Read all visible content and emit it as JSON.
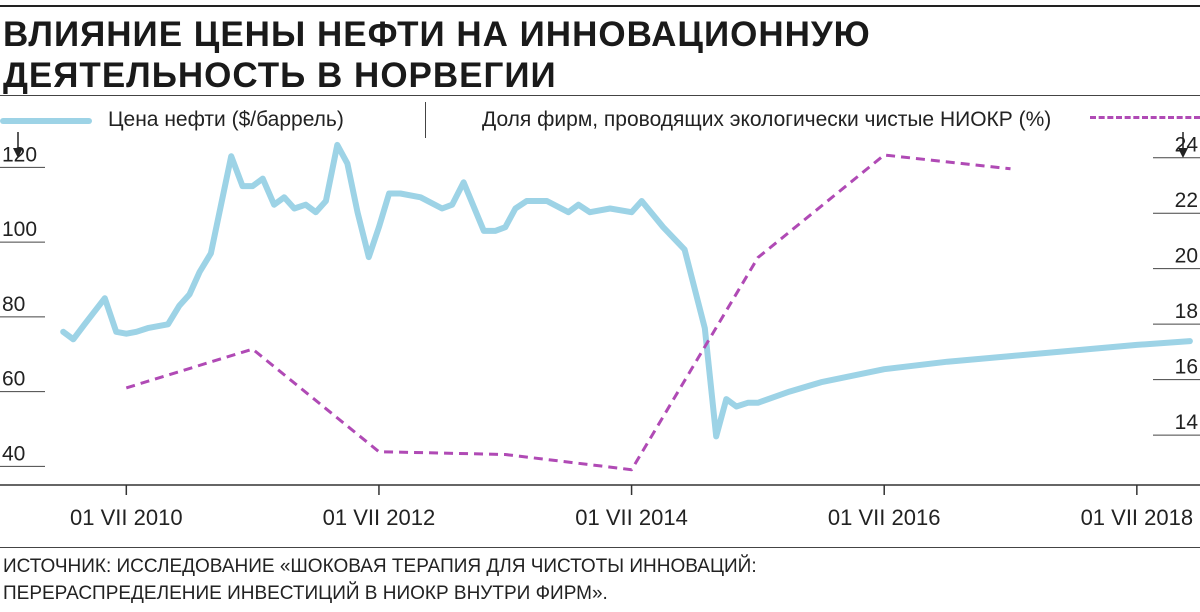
{
  "header": {
    "title_line1": "ВЛИЯНИЕ ЦЕНЫ НЕФТИ НА ИННОВАЦИОННУЮ",
    "title_line2": "ДЕЯТЕЛЬНОСТЬ В НОРВЕГИИ"
  },
  "legend": {
    "oil_label": "Цена нефти ($/баррель)",
    "share_label": "Доля фирм, проводящих экологически чистые НИОКР (%)",
    "oil_color": "#9dd3e6",
    "share_color": "#b04ab5"
  },
  "source": {
    "line1": "ИСТОЧНИК: ИССЛЕДОВАНИЕ «ШОКОВАЯ ТЕРАПИЯ ДЛЯ ЧИСТОТЫ ИННОВАЦИЙ:",
    "line2": "ПЕРЕРАСПРЕДЕЛЕНИЕ ИНВЕСТИЦИЙ В НИОКР ВНУТРИ ФИРМ»."
  },
  "chart_data": {
    "type": "line",
    "title": "ВЛИЯНИЕ ЦЕНЫ НЕФТИ НА ИННОВАЦИОННУЮ ДЕЯТЕЛЬНОСТЬ В НОРВЕГИИ",
    "xlabel": "",
    "xlim": [
      2009.5,
      2019.0
    ],
    "x_ticks": [
      {
        "x": 2010.5,
        "label": "01 VII 2010"
      },
      {
        "x": 2012.5,
        "label": "01 VII 2012"
      },
      {
        "x": 2014.5,
        "label": "01 VII 2014"
      },
      {
        "x": 2016.5,
        "label": "01 VII 2016"
      },
      {
        "x": 2018.5,
        "label": "01 VII 2018"
      }
    ],
    "y_left": {
      "label": "Цена нефти ($/баррель)",
      "ylim": [
        35,
        130
      ],
      "ticks": [
        40,
        60,
        80,
        100,
        120
      ]
    },
    "y_right": {
      "label": "Доля фирм, проводящих экологически чистые НИОКР (%)",
      "ylim": [
        12.2,
        25.0
      ],
      "ticks": [
        14,
        16,
        18,
        20,
        22,
        24
      ]
    },
    "series": [
      {
        "name": "Цена нефти ($/баррель)",
        "axis": "left",
        "color": "#9dd3e6",
        "style": "solid",
        "x": [
          2010.0,
          2010.08,
          2010.17,
          2010.33,
          2010.42,
          2010.5,
          2010.58,
          2010.67,
          2010.83,
          2010.92,
          2011.0,
          2011.08,
          2011.17,
          2011.33,
          2011.42,
          2011.5,
          2011.58,
          2011.67,
          2011.75,
          2011.83,
          2011.92,
          2012.0,
          2012.08,
          2012.17,
          2012.25,
          2012.33,
          2012.42,
          2012.5,
          2012.58,
          2012.67,
          2012.83,
          2013.0,
          2013.08,
          2013.17,
          2013.33,
          2013.42,
          2013.5,
          2013.58,
          2013.67,
          2013.83,
          2014.0,
          2014.08,
          2014.17,
          2014.33,
          2014.5,
          2014.58,
          2014.75,
          2014.92,
          2015.08,
          2015.17,
          2015.25,
          2015.33,
          2015.42,
          2015.5,
          2015.75,
          2016.0,
          2016.5,
          2017.0,
          2017.5,
          2018.0,
          2018.5,
          2018.92
        ],
        "values": [
          76,
          74,
          78,
          85,
          76,
          75.5,
          76,
          77,
          78,
          83,
          86,
          92,
          97,
          123,
          115,
          115,
          117,
          110,
          112,
          109,
          110,
          108,
          111,
          126,
          121,
          108,
          96,
          104,
          113,
          113,
          112,
          109,
          110,
          116,
          103,
          103,
          104,
          109,
          111,
          111,
          108,
          110,
          108,
          109,
          108,
          111,
          104,
          98,
          77,
          48,
          58,
          56,
          57,
          57,
          60,
          62.5,
          66,
          68,
          69.5,
          71,
          72.5,
          73.5
        ]
      },
      {
        "name": "Доля фирм, проводящих экологически чистые НИОКР (%)",
        "axis": "right",
        "color": "#b04ab5",
        "style": "dashed",
        "x": [
          2010.5,
          2011.5,
          2012.5,
          2013.5,
          2014.5,
          2015.5,
          2016.5,
          2017.5
        ],
        "values": [
          15.7,
          17.1,
          13.4,
          13.3,
          12.75,
          20.4,
          24.1,
          23.6
        ]
      }
    ]
  }
}
